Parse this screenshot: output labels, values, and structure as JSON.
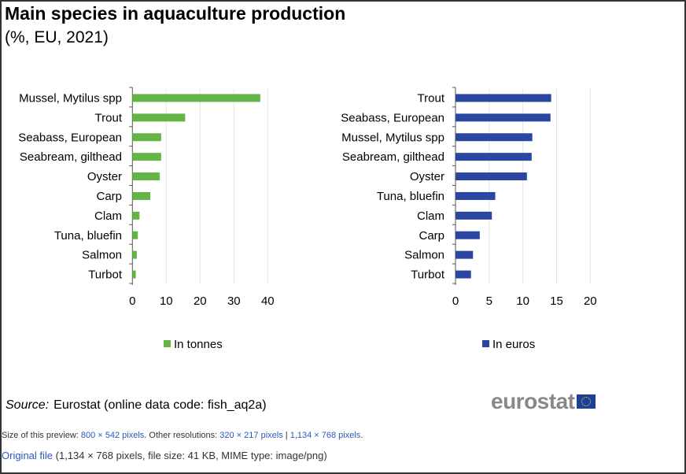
{
  "title": "Main species in aquaculture production",
  "subtitle": "(%, EU, 2021)",
  "chart_data": [
    {
      "type": "bar",
      "orientation": "horizontal",
      "legend": "In tonnes",
      "color": "#64b446",
      "xlim": [
        0,
        40
      ],
      "ticks": [
        0,
        10,
        20,
        30,
        40
      ],
      "categories": [
        "Mussel, Mytilus spp",
        "Trout",
        "Seabass, European",
        "Seabream, gilthead",
        "Oyster",
        "Carp",
        "Clam",
        "Tuna, bluefin",
        "Salmon",
        "Turbot"
      ],
      "values": [
        37.8,
        15.6,
        8.5,
        8.5,
        8.1,
        5.3,
        2.1,
        1.6,
        1.3,
        1.0
      ],
      "legend_placement": "bottom",
      "grid": true
    },
    {
      "type": "bar",
      "orientation": "horizontal",
      "legend": "In euros",
      "color": "#2a46a0",
      "xlim": [
        0,
        20
      ],
      "ticks": [
        0,
        5,
        10,
        15,
        20
      ],
      "categories": [
        "Trout",
        "Seabass, European",
        "Mussel, Mytilus spp",
        "Seabream, gilthead",
        "Oyster",
        "Tuna, bluefin",
        "Clam",
        "Carp",
        "Salmon",
        "Turbot"
      ],
      "values": [
        14.2,
        14.1,
        11.4,
        11.3,
        10.6,
        5.9,
        5.4,
        3.6,
        2.6,
        2.3
      ],
      "legend_placement": "bottom",
      "grid": true
    }
  ],
  "source": {
    "label": "Source:",
    "text": "Eurostat (online data code: fish_aq2a)"
  },
  "logo": "eurostat",
  "meta": {
    "preview_prefix": "Size of this preview: ",
    "preview_link": "800 × 542 pixels",
    "other_prefix": ". Other resolutions: ",
    "res1": "320 × 217 pixels",
    "sep": " | ",
    "res2": "1,134 × 768 pixels",
    "end": ".",
    "original_link": "Original file",
    "original_info": " (1,134 × 768 pixels, file size: 41 KB, MIME type: image/png)"
  }
}
